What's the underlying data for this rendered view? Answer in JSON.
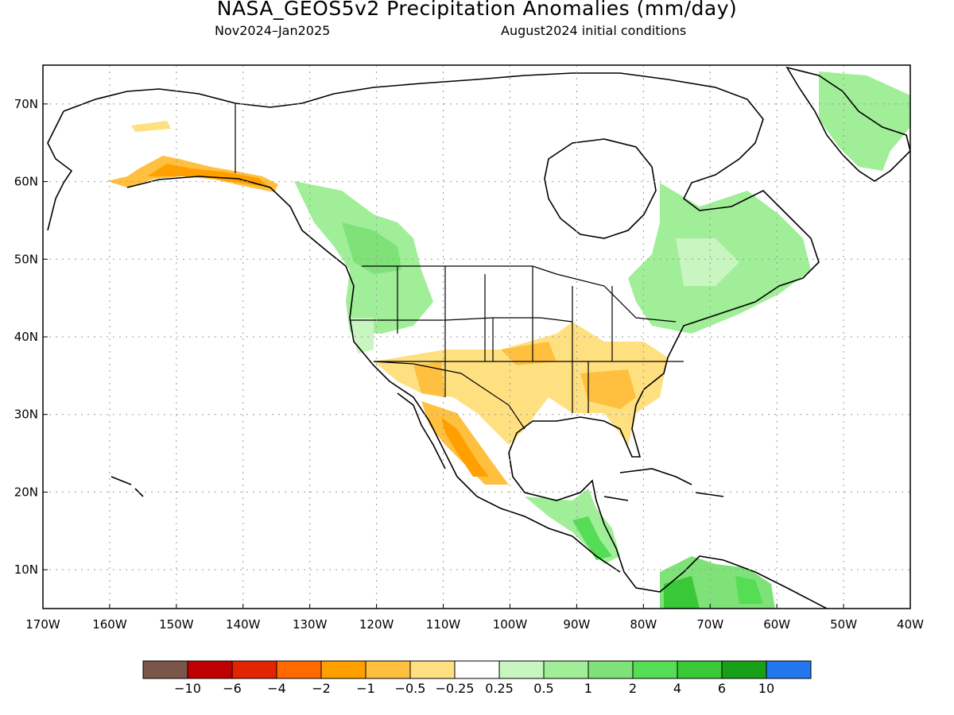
{
  "title": "NASA_GEOS5v2 Precipitation Anomalies (mm/day)",
  "subtitle_left": "Nov2024–Jan2025",
  "subtitle_right": "August2024 initial conditions",
  "map": {
    "lon_range": [
      -170,
      -40
    ],
    "lat_range": [
      5,
      75
    ],
    "lon_ticks": [
      "170W",
      "160W",
      "150W",
      "140W",
      "130W",
      "120W",
      "110W",
      "100W",
      "90W",
      "80W",
      "70W",
      "60W",
      "50W",
      "40W"
    ],
    "lat_ticks": [
      "70N",
      "60N",
      "50N",
      "40N",
      "30N",
      "20N",
      "10N"
    ]
  },
  "colorbar": {
    "colors": [
      "#7a5548",
      "#c00000",
      "#e22400",
      "#ff6a00",
      "#ffa000",
      "#ffc040",
      "#ffe080",
      "#ffffff",
      "#c8f5c0",
      "#a0ee98",
      "#7ee278",
      "#55dd55",
      "#38c838",
      "#18a018",
      "#2277ee"
    ],
    "labels": [
      "−10",
      "−6",
      "−4",
      "−2",
      "−1",
      "−0.5",
      "−0.25",
      "0.25",
      "0.5",
      "1",
      "2",
      "4",
      "6",
      "10"
    ]
  }
}
